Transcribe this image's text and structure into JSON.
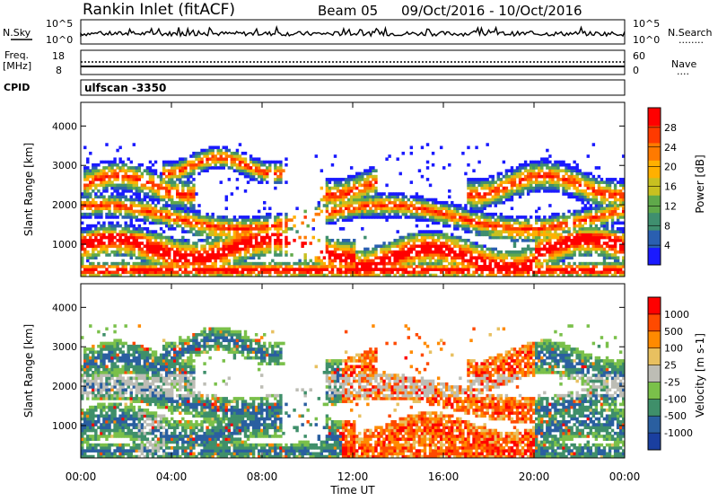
{
  "header": {
    "station": "Rankin Inlet (fitACF)",
    "beam": "Beam 05",
    "dates": "09/Oct/2016 - 10/Oct/2016"
  },
  "noise_panel": {
    "left_label": "N.Sky",
    "right_label": "N.Search",
    "right_dots": "........",
    "ticks": [
      "10^5",
      "10^0"
    ]
  },
  "freq_panel": {
    "left_label_1": "Freq.",
    "left_label_2": "[MHz]",
    "right_label": "Nave",
    "right_dots": "....",
    "left_ticks": [
      "18",
      "8"
    ],
    "right_ticks": [
      "60",
      "0"
    ]
  },
  "cpid": {
    "label": "CPID",
    "value": "ulfscan -3350"
  },
  "chart_data": [
    {
      "type": "heatmap",
      "quantity": "Power",
      "ylabel": "Slant Range [km]",
      "colorbar_label": "Power [dB]",
      "colorbar_ticks": [
        "28",
        "24",
        "20",
        "16",
        "12",
        "8",
        "4"
      ],
      "colors": [
        "#1a1aff",
        "#2a5fb0",
        "#3f8f6f",
        "#5fa94a",
        "#c8c020",
        "#ffb000",
        "#ff7a00",
        "#ff3a00",
        "#ff0000"
      ],
      "yticks": [
        1000,
        2000,
        3000,
        4000
      ],
      "ylim": [
        180,
        4600
      ],
      "xlim": [
        0,
        24
      ],
      "xticks": [
        "00:00",
        "04:00",
        "08:00",
        "12:00",
        "16:00",
        "20:00",
        "00:00"
      ]
    },
    {
      "type": "heatmap",
      "quantity": "Velocity",
      "ylabel": "Slant Range [km]",
      "colorbar_label": "Velocity [m s-1]",
      "colorbar_ticks": [
        "1000",
        "500",
        "100",
        "25",
        "-25",
        "-100",
        "-500",
        "-1000"
      ],
      "colors": [
        "#1a3fa0",
        "#2a5fa0",
        "#3f8f6a",
        "#7ac04a",
        "#bdbdb5",
        "#e8c060",
        "#ff8a00",
        "#ff4a00",
        "#ff0000"
      ],
      "yticks": [
        1000,
        2000,
        3000,
        4000
      ],
      "ylim": [
        180,
        4600
      ],
      "xlim": [
        0,
        24
      ],
      "xticks": [
        "00:00",
        "04:00",
        "08:00",
        "12:00",
        "16:00",
        "20:00",
        "00:00"
      ],
      "xlabel": "Time UT"
    }
  ]
}
